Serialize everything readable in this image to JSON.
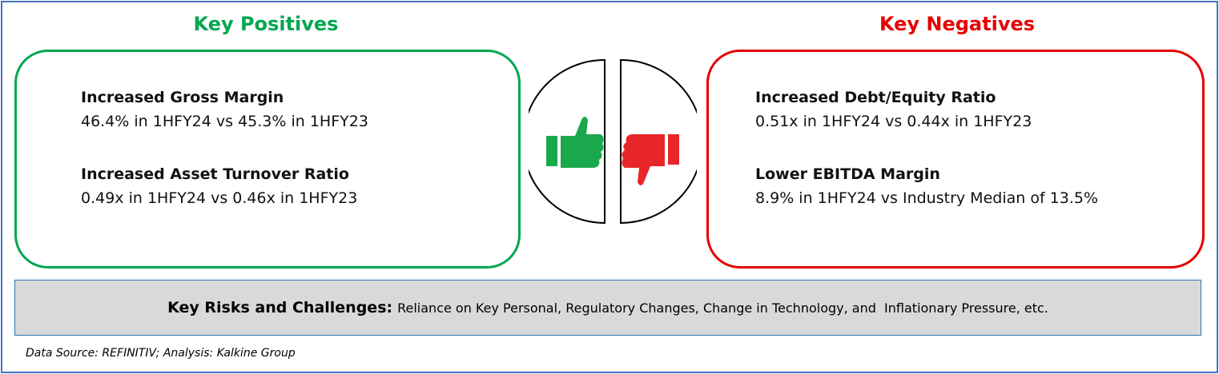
{
  "positives": {
    "title": "Key Positives",
    "items": [
      {
        "heading": "Increased Gross Margin",
        "text": "46.4% in 1HFY24 vs 45.3% in 1HFY23"
      },
      {
        "heading": "Increased Asset Turnover Ratio",
        "text": "0.49x in 1HFY24 vs 0.46x in 1HFY23"
      }
    ]
  },
  "negatives": {
    "title": "Key Negatives",
    "items": [
      {
        "heading": "Increased Debt/Equity Ratio",
        "text": "0.51x in 1HFY24 vs 0.44x in 1HFY23"
      },
      {
        "heading": "Lower EBITDA Margin",
        "text": "8.9% in 1HFY24 vs Industry Median of 13.5%"
      }
    ]
  },
  "risks": {
    "label": "Key Risks and Challenges:",
    "text": "Reliance on Key Personal, Regulatory Changes, Change in Technology, and  Inflationary Pressure, etc."
  },
  "footer": "Data Source: REFINITIV; Analysis: Kalkine Group"
}
